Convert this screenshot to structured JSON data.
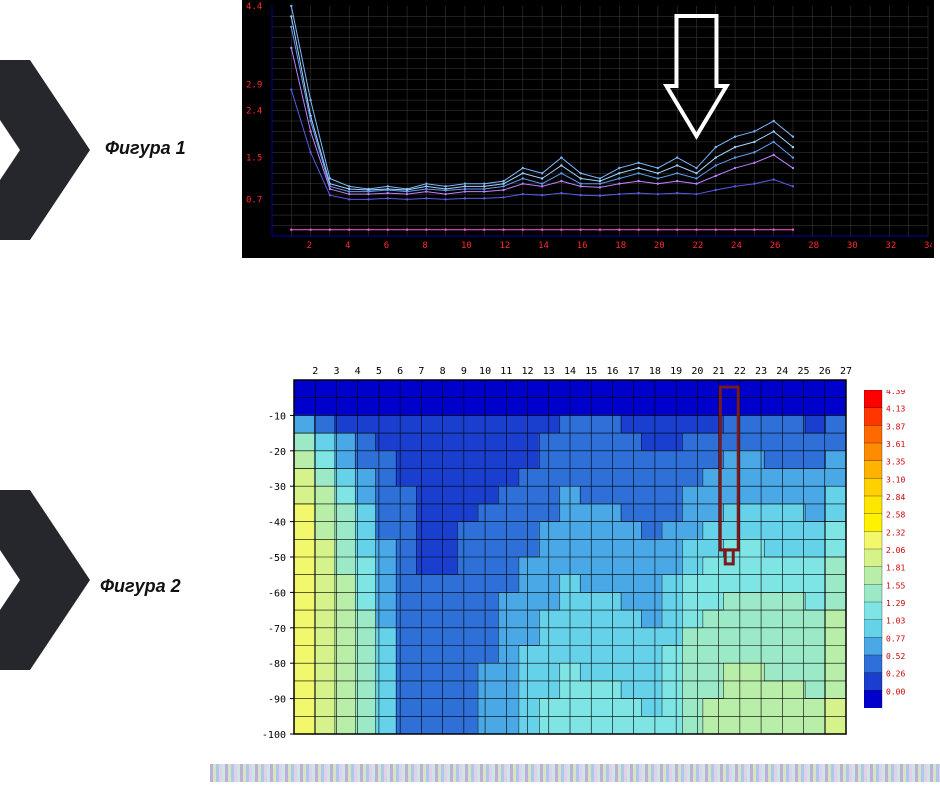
{
  "labels": {
    "fig1": "Фигура 1",
    "fig2": "Фигура 2"
  },
  "decor": {
    "chevron_color": "#26262d"
  },
  "chart1": {
    "type": "line",
    "background": "#000000",
    "grid_color": "#404040",
    "axis_color": "#0000aa",
    "tick_color": "#ff2a2a",
    "tick_fontsize": 9,
    "x": {
      "min": 0,
      "max": 34,
      "ticks": [
        2,
        4,
        6,
        8,
        10,
        12,
        14,
        16,
        18,
        20,
        22,
        24,
        26,
        28,
        30,
        32,
        34
      ]
    },
    "y": {
      "min": 0,
      "max": 4.4,
      "ticks": [
        0.7,
        1.5,
        2.4,
        2.9,
        4.4
      ]
    },
    "arrow": {
      "x": 22,
      "y_top": 0.2,
      "color": "#ffffff",
      "stroke": 4
    },
    "series": [
      {
        "color": "#7eb8ff",
        "pts": [
          [
            1,
            4.4
          ],
          [
            2,
            2.6
          ],
          [
            3,
            1.1
          ],
          [
            4,
            0.95
          ],
          [
            5,
            0.9
          ],
          [
            6,
            0.95
          ],
          [
            7,
            0.9
          ],
          [
            8,
            1.0
          ],
          [
            9,
            0.95
          ],
          [
            10,
            1.0
          ],
          [
            11,
            1.0
          ],
          [
            12,
            1.05
          ],
          [
            13,
            1.3
          ],
          [
            14,
            1.2
          ],
          [
            15,
            1.5
          ],
          [
            16,
            1.2
          ],
          [
            17,
            1.1
          ],
          [
            18,
            1.3
          ],
          [
            19,
            1.4
          ],
          [
            20,
            1.3
          ],
          [
            21,
            1.5
          ],
          [
            22,
            1.3
          ],
          [
            23,
            1.7
          ],
          [
            24,
            1.9
          ],
          [
            25,
            2.0
          ],
          [
            26,
            2.2
          ],
          [
            27,
            1.9
          ]
        ]
      },
      {
        "color": "#a3d4ff",
        "pts": [
          [
            1,
            4.2
          ],
          [
            2,
            2.3
          ],
          [
            3,
            1.0
          ],
          [
            4,
            0.9
          ],
          [
            5,
            0.88
          ],
          [
            6,
            0.9
          ],
          [
            7,
            0.88
          ],
          [
            8,
            0.95
          ],
          [
            9,
            0.9
          ],
          [
            10,
            0.95
          ],
          [
            11,
            0.95
          ],
          [
            12,
            1.0
          ],
          [
            13,
            1.2
          ],
          [
            14,
            1.1
          ],
          [
            15,
            1.35
          ],
          [
            16,
            1.1
          ],
          [
            17,
            1.05
          ],
          [
            18,
            1.2
          ],
          [
            19,
            1.3
          ],
          [
            20,
            1.2
          ],
          [
            21,
            1.35
          ],
          [
            22,
            1.2
          ],
          [
            23,
            1.5
          ],
          [
            24,
            1.7
          ],
          [
            25,
            1.8
          ],
          [
            26,
            2.0
          ],
          [
            27,
            1.7
          ]
        ]
      },
      {
        "color": "#5e9ff0",
        "pts": [
          [
            1,
            4.0
          ],
          [
            2,
            2.2
          ],
          [
            3,
            0.95
          ],
          [
            4,
            0.85
          ],
          [
            5,
            0.85
          ],
          [
            6,
            0.88
          ],
          [
            7,
            0.85
          ],
          [
            8,
            0.9
          ],
          [
            9,
            0.87
          ],
          [
            10,
            0.9
          ],
          [
            11,
            0.9
          ],
          [
            12,
            0.95
          ],
          [
            13,
            1.1
          ],
          [
            14,
            1.0
          ],
          [
            15,
            1.2
          ],
          [
            16,
            1.0
          ],
          [
            17,
            1.0
          ],
          [
            18,
            1.1
          ],
          [
            19,
            1.2
          ],
          [
            20,
            1.1
          ],
          [
            21,
            1.2
          ],
          [
            22,
            1.1
          ],
          [
            23,
            1.35
          ],
          [
            24,
            1.5
          ],
          [
            25,
            1.6
          ],
          [
            26,
            1.8
          ],
          [
            27,
            1.5
          ]
        ]
      },
      {
        "color": "#c080ff",
        "pts": [
          [
            1,
            3.6
          ],
          [
            2,
            2.0
          ],
          [
            3,
            0.9
          ],
          [
            4,
            0.8
          ],
          [
            5,
            0.8
          ],
          [
            6,
            0.82
          ],
          [
            7,
            0.8
          ],
          [
            8,
            0.85
          ],
          [
            9,
            0.8
          ],
          [
            10,
            0.85
          ],
          [
            11,
            0.85
          ],
          [
            12,
            0.88
          ],
          [
            13,
            1.0
          ],
          [
            14,
            0.95
          ],
          [
            15,
            1.05
          ],
          [
            16,
            0.95
          ],
          [
            17,
            0.93
          ],
          [
            18,
            1.0
          ],
          [
            19,
            1.05
          ],
          [
            20,
            1.0
          ],
          [
            21,
            1.05
          ],
          [
            22,
            1.0
          ],
          [
            23,
            1.15
          ],
          [
            24,
            1.3
          ],
          [
            25,
            1.4
          ],
          [
            26,
            1.55
          ],
          [
            27,
            1.3
          ]
        ]
      },
      {
        "color": "#5a5ae6",
        "pts": [
          [
            1,
            2.8
          ],
          [
            2,
            1.6
          ],
          [
            3,
            0.78
          ],
          [
            4,
            0.7
          ],
          [
            5,
            0.7
          ],
          [
            6,
            0.72
          ],
          [
            7,
            0.7
          ],
          [
            8,
            0.72
          ],
          [
            9,
            0.7
          ],
          [
            10,
            0.72
          ],
          [
            11,
            0.72
          ],
          [
            12,
            0.74
          ],
          [
            13,
            0.8
          ],
          [
            14,
            0.78
          ],
          [
            15,
            0.82
          ],
          [
            16,
            0.78
          ],
          [
            17,
            0.77
          ],
          [
            18,
            0.8
          ],
          [
            19,
            0.82
          ],
          [
            20,
            0.8
          ],
          [
            21,
            0.82
          ],
          [
            22,
            0.8
          ],
          [
            23,
            0.88
          ],
          [
            24,
            0.95
          ],
          [
            25,
            1.0
          ],
          [
            26,
            1.08
          ],
          [
            27,
            0.95
          ]
        ]
      },
      {
        "color": "#ff55dd",
        "pts": [
          [
            1,
            0.12
          ],
          [
            2,
            0.12
          ],
          [
            3,
            0.12
          ],
          [
            4,
            0.12
          ],
          [
            5,
            0.12
          ],
          [
            6,
            0.12
          ],
          [
            7,
            0.12
          ],
          [
            8,
            0.12
          ],
          [
            9,
            0.12
          ],
          [
            10,
            0.12
          ],
          [
            11,
            0.12
          ],
          [
            12,
            0.12
          ],
          [
            13,
            0.12
          ],
          [
            14,
            0.12
          ],
          [
            15,
            0.12
          ],
          [
            16,
            0.12
          ],
          [
            17,
            0.12
          ],
          [
            18,
            0.12
          ],
          [
            19,
            0.12
          ],
          [
            20,
            0.12
          ],
          [
            21,
            0.12
          ],
          [
            22,
            0.12
          ],
          [
            23,
            0.12
          ],
          [
            24,
            0.12
          ],
          [
            25,
            0.12
          ],
          [
            26,
            0.12
          ],
          [
            27,
            0.12
          ]
        ]
      }
    ]
  },
  "chart2": {
    "type": "heatmap",
    "axis_color": "#000000",
    "tick_fontsize": 10,
    "x": {
      "min": 1,
      "max": 27,
      "ticks": [
        2,
        3,
        4,
        5,
        6,
        7,
        8,
        9,
        10,
        11,
        12,
        13,
        14,
        15,
        16,
        17,
        18,
        19,
        20,
        21,
        22,
        23,
        24,
        25,
        26,
        27
      ]
    },
    "y": {
      "min": -100,
      "max": 0,
      "ticks": [
        -10,
        -20,
        -30,
        -40,
        -50,
        -60,
        -70,
        -80,
        -90,
        -100
      ]
    },
    "grid_color": "#000000",
    "marker": {
      "x": 21.5,
      "y_top": -2,
      "y_bot": -48,
      "color": "#7a1a1a",
      "width": 3
    },
    "nx": 27,
    "ny": 20,
    "values": [
      [
        0.1,
        0.1,
        0.1,
        0.1,
        0.1,
        0.1,
        0.1,
        0.1,
        0.1,
        0.1,
        0.1,
        0.1,
        0.1,
        0.1,
        0.1,
        0.1,
        0.1,
        0.1,
        0.1,
        0.1,
        0.1,
        0.1,
        0.1,
        0.1,
        0.1,
        0.1,
        0.1
      ],
      [
        0.18,
        0.18,
        0.18,
        0.18,
        0.2,
        0.2,
        0.2,
        0.2,
        0.2,
        0.2,
        0.2,
        0.2,
        0.2,
        0.22,
        0.22,
        0.22,
        0.22,
        0.2,
        0.2,
        0.2,
        0.2,
        0.22,
        0.22,
        0.22,
        0.22,
        0.2,
        0.2
      ],
      [
        0.8,
        0.6,
        0.4,
        0.4,
        0.4,
        0.4,
        0.4,
        0.4,
        0.4,
        0.4,
        0.4,
        0.4,
        0.45,
        0.55,
        0.55,
        0.55,
        0.5,
        0.45,
        0.45,
        0.45,
        0.5,
        0.6,
        0.6,
        0.55,
        0.55,
        0.5,
        0.55
      ],
      [
        1.6,
        1.2,
        0.8,
        0.55,
        0.5,
        0.5,
        0.4,
        0.4,
        0.45,
        0.45,
        0.45,
        0.45,
        0.55,
        0.6,
        0.6,
        0.6,
        0.55,
        0.5,
        0.5,
        0.55,
        0.6,
        0.7,
        0.7,
        0.65,
        0.65,
        0.6,
        0.7
      ],
      [
        1.9,
        1.5,
        1.0,
        0.7,
        0.55,
        0.5,
        0.35,
        0.4,
        0.45,
        0.45,
        0.45,
        0.5,
        0.6,
        0.7,
        0.65,
        0.65,
        0.6,
        0.55,
        0.55,
        0.6,
        0.7,
        0.8,
        0.8,
        0.75,
        0.75,
        0.7,
        0.8
      ],
      [
        2.1,
        1.7,
        1.2,
        0.8,
        0.6,
        0.5,
        0.4,
        0.4,
        0.45,
        0.45,
        0.5,
        0.55,
        0.65,
        0.75,
        0.7,
        0.7,
        0.65,
        0.6,
        0.6,
        0.7,
        0.8,
        0.9,
        0.9,
        0.85,
        0.85,
        0.8,
        0.95
      ],
      [
        2.3,
        1.9,
        1.4,
        0.95,
        0.65,
        0.55,
        0.4,
        0.4,
        0.5,
        0.5,
        0.55,
        0.6,
        0.7,
        0.8,
        0.75,
        0.75,
        0.7,
        0.65,
        0.7,
        0.8,
        0.9,
        1.0,
        1.0,
        0.95,
        0.95,
        0.9,
        1.1
      ],
      [
        2.4,
        2.0,
        1.55,
        1.05,
        0.7,
        0.55,
        0.45,
        0.45,
        0.5,
        0.55,
        0.6,
        0.65,
        0.75,
        0.85,
        0.8,
        0.8,
        0.75,
        0.7,
        0.75,
        0.9,
        1.0,
        1.1,
        1.1,
        1.05,
        1.05,
        1.0,
        1.25
      ],
      [
        2.45,
        2.05,
        1.65,
        1.15,
        0.75,
        0.55,
        0.45,
        0.45,
        0.55,
        0.55,
        0.6,
        0.7,
        0.8,
        0.9,
        0.85,
        0.85,
        0.8,
        0.75,
        0.85,
        1.0,
        1.1,
        1.2,
        1.2,
        1.15,
        1.15,
        1.1,
        1.35
      ],
      [
        2.5,
        2.1,
        1.75,
        1.25,
        0.8,
        0.55,
        0.5,
        0.5,
        0.55,
        0.6,
        0.65,
        0.75,
        0.85,
        0.95,
        0.9,
        0.9,
        0.85,
        0.8,
        0.9,
        1.1,
        1.2,
        1.3,
        1.3,
        1.25,
        1.25,
        1.2,
        1.45
      ],
      [
        2.55,
        2.15,
        1.8,
        1.35,
        0.85,
        0.6,
        0.5,
        0.5,
        0.6,
        0.6,
        0.7,
        0.8,
        0.9,
        1.0,
        0.95,
        0.95,
        0.9,
        0.85,
        1.0,
        1.2,
        1.3,
        1.4,
        1.4,
        1.35,
        1.35,
        1.3,
        1.55
      ],
      [
        2.55,
        2.2,
        1.85,
        1.45,
        0.9,
        0.6,
        0.55,
        0.55,
        0.6,
        0.65,
        0.75,
        0.85,
        0.95,
        1.05,
        1.0,
        1.0,
        0.95,
        0.9,
        1.05,
        1.3,
        1.4,
        1.5,
        1.5,
        1.45,
        1.45,
        1.4,
        1.65
      ],
      [
        2.55,
        2.2,
        1.9,
        1.5,
        0.95,
        0.6,
        0.55,
        0.55,
        0.65,
        0.7,
        0.8,
        0.9,
        1.0,
        1.1,
        1.05,
        1.05,
        1.0,
        0.95,
        1.1,
        1.4,
        1.5,
        1.6,
        1.6,
        1.55,
        1.55,
        1.5,
        1.75
      ],
      [
        2.55,
        2.2,
        1.9,
        1.55,
        1.0,
        0.6,
        0.55,
        0.55,
        0.65,
        0.7,
        0.8,
        0.95,
        1.05,
        1.15,
        1.1,
        1.1,
        1.05,
        1.0,
        1.2,
        1.5,
        1.6,
        1.7,
        1.7,
        1.65,
        1.65,
        1.6,
        1.85
      ],
      [
        2.55,
        2.2,
        1.9,
        1.6,
        1.05,
        0.6,
        0.55,
        0.6,
        0.7,
        0.75,
        0.85,
        1.0,
        1.1,
        1.2,
        1.15,
        1.15,
        1.1,
        1.05,
        1.25,
        1.55,
        1.65,
        1.75,
        1.75,
        1.7,
        1.7,
        1.65,
        1.9
      ],
      [
        2.55,
        2.2,
        1.9,
        1.6,
        1.1,
        0.6,
        0.58,
        0.6,
        0.7,
        0.75,
        0.9,
        1.05,
        1.15,
        1.25,
        1.2,
        1.2,
        1.15,
        1.1,
        1.3,
        1.6,
        1.7,
        1.8,
        1.8,
        1.75,
        1.75,
        1.7,
        1.95
      ],
      [
        2.55,
        2.2,
        1.9,
        1.6,
        1.1,
        0.6,
        0.58,
        0.6,
        0.7,
        0.8,
        0.9,
        1.1,
        1.2,
        1.3,
        1.25,
        1.25,
        1.2,
        1.15,
        1.35,
        1.65,
        1.75,
        1.85,
        1.85,
        1.8,
        1.8,
        1.75,
        2.0
      ],
      [
        2.55,
        2.2,
        1.9,
        1.6,
        1.1,
        0.6,
        0.6,
        0.6,
        0.75,
        0.8,
        0.95,
        1.15,
        1.25,
        1.35,
        1.3,
        1.3,
        1.25,
        1.2,
        1.4,
        1.7,
        1.8,
        1.9,
        1.9,
        1.85,
        1.85,
        1.8,
        2.05
      ],
      [
        2.55,
        2.2,
        1.9,
        1.6,
        1.1,
        0.6,
        0.6,
        0.6,
        0.75,
        0.85,
        1.0,
        1.2,
        1.3,
        1.4,
        1.35,
        1.35,
        1.3,
        1.25,
        1.45,
        1.75,
        1.85,
        1.95,
        1.95,
        1.9,
        1.9,
        1.85,
        2.1
      ],
      [
        2.55,
        2.2,
        1.9,
        1.6,
        1.1,
        0.6,
        0.6,
        0.6,
        0.75,
        0.85,
        1.0,
        1.25,
        1.35,
        1.45,
        1.4,
        1.4,
        1.35,
        1.3,
        1.5,
        1.8,
        1.9,
        2.0,
        2.0,
        1.95,
        1.95,
        1.9,
        2.15
      ]
    ]
  },
  "legend": {
    "ticks": [
      4.39,
      4.13,
      3.87,
      3.61,
      3.35,
      3.1,
      2.84,
      2.58,
      2.32,
      2.06,
      1.81,
      1.55,
      1.29,
      1.03,
      0.77,
      0.52,
      0.26,
      0.0
    ],
    "colors": [
      "#ff0000",
      "#ff3600",
      "#ff6a00",
      "#ff8c00",
      "#ffb200",
      "#ffd000",
      "#ffe600",
      "#fff200",
      "#f2f76b",
      "#d6f28a",
      "#b9eea9",
      "#9ce9c7",
      "#7fe4e4",
      "#66d2ea",
      "#4aa8e6",
      "#2e70d8",
      "#1a3fce",
      "#0000cd"
    ],
    "tick_fontsize": 8,
    "tick_color": "#cc0000"
  }
}
